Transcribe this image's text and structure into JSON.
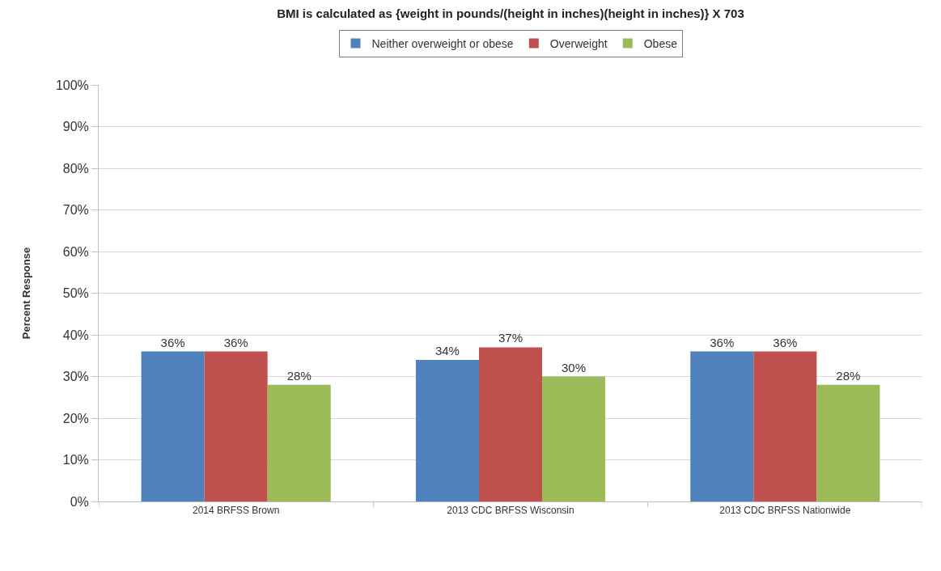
{
  "chart_data": {
    "type": "bar",
    "title": "BMI is calculated as {weight in pounds/(height in inches)(height in inches)} X 703",
    "ylabel": "Percent Response",
    "categories": [
      "2014 BRFSS Brown",
      "2013 CDC BRFSS Wisconsin",
      "2013 CDC BRFSS Nationwide"
    ],
    "series": [
      {
        "name": "Neither overweight or obese",
        "color": "#4f81bd",
        "values": [
          36,
          34,
          36
        ],
        "value_labels": [
          "36%",
          "34%",
          "36%"
        ]
      },
      {
        "name": "Overweight",
        "color": "#c0504d",
        "values": [
          36,
          37,
          36
        ],
        "value_labels": [
          "36%",
          "37%",
          "36%"
        ]
      },
      {
        "name": "Obese",
        "color": "#9bbb59",
        "values": [
          28,
          30,
          28
        ],
        "value_labels": [
          "28%",
          "30%",
          "28%"
        ]
      }
    ],
    "ylim": [
      0,
      100
    ],
    "yticks": [
      {
        "value": 0,
        "label": "0%"
      },
      {
        "value": 10,
        "label": "10%"
      },
      {
        "value": 20,
        "label": "20%"
      },
      {
        "value": 30,
        "label": "30%"
      },
      {
        "value": 40,
        "label": "40%"
      },
      {
        "value": 50,
        "label": "50%"
      },
      {
        "value": 60,
        "label": "60%"
      },
      {
        "value": 70,
        "label": "70%"
      },
      {
        "value": 80,
        "label": "80%"
      },
      {
        "value": 90,
        "label": "90%"
      },
      {
        "value": 100,
        "label": "100%"
      }
    ],
    "grid": "y",
    "legend": "top"
  }
}
